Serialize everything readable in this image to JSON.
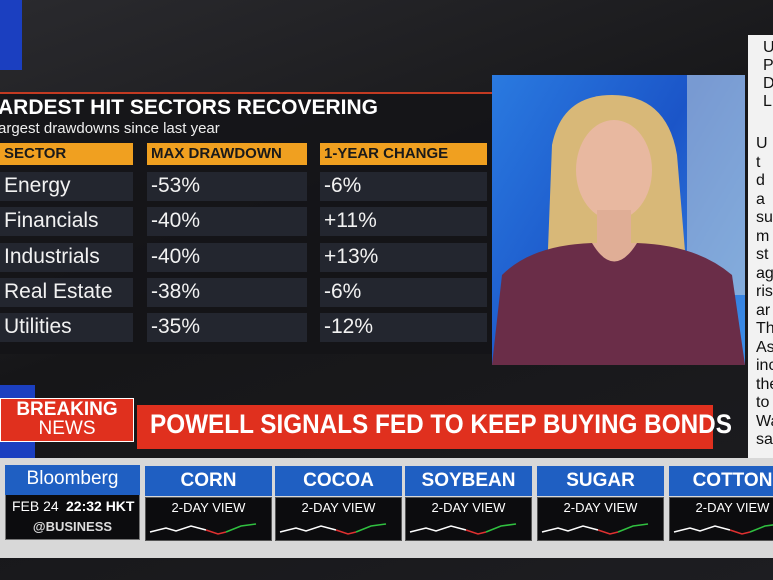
{
  "header": {
    "title": "ARDEST HIT SECTORS RECOVERING",
    "subtitle": "argest drawdowns since last year"
  },
  "table": {
    "columns": [
      "SECTOR",
      "MAX DRAWDOWN",
      "1-YEAR CHANGE"
    ],
    "rows": [
      [
        "Energy",
        "-53%",
        "-6%"
      ],
      [
        "Financials",
        "-40%",
        "+11%"
      ],
      [
        "Industrials",
        "-40%",
        "+13%"
      ],
      [
        "Real Estate",
        "-38%",
        "-6%"
      ],
      [
        "Utilities",
        "-35%",
        "-12%"
      ]
    ]
  },
  "breaking": {
    "label": [
      "BREAKING",
      "NEWS"
    ],
    "headline": "POWELL SIGNALS FED TO KEEP BUYING BONDS"
  },
  "ticker": {
    "brand": "Bloomberg",
    "date": "FEB 24",
    "time": "22:32 HKT",
    "handle": "@BUSINESS",
    "markets": [
      {
        "name": "CORN",
        "caption": "2-DAY VIEW"
      },
      {
        "name": "COCOA",
        "caption": "2-DAY VIEW"
      },
      {
        "name": "SOYBEAN",
        "caption": "2-DAY VIEW"
      },
      {
        "name": "SUGAR",
        "caption": "2-DAY VIEW"
      },
      {
        "name": "COTTON",
        "caption": "2-DAY VIEW"
      }
    ]
  },
  "side_text": {
    "top": [
      "U",
      "P",
      "D",
      "L"
    ],
    "body": [
      "U",
      "t",
      "d",
      "a",
      "su",
      "m",
      "st",
      "ag",
      "ris",
      "ar",
      "Th",
      "As",
      "inc",
      "the",
      "to",
      "Wa",
      "sai"
    ]
  }
}
